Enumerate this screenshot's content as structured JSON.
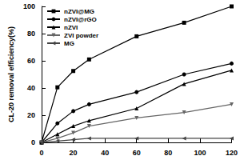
{
  "chart_data": {
    "type": "line",
    "y_label": "CL-20 removal efficiency(%)",
    "x": [
      0,
      10,
      20,
      30,
      60,
      90,
      120
    ],
    "series": [
      {
        "name": "nZVI@MG",
        "color": "#000000",
        "marker": "square",
        "values": [
          0,
          40.5,
          52.5,
          61,
          78,
          88,
          100
        ]
      },
      {
        "name": "nZVI@rGO",
        "color": "#000000",
        "marker": "circle",
        "values": [
          0,
          14,
          23,
          28,
          37,
          50,
          58
        ]
      },
      {
        "name": "nZVI",
        "color": "#000000",
        "marker": "triangle",
        "values": [
          0,
          6,
          12,
          16,
          25,
          43,
          53
        ]
      },
      {
        "name": "ZVI powder",
        "color": "#666666",
        "marker": "triangle_down",
        "values": [
          0,
          3,
          7,
          12,
          18,
          22,
          28
        ]
      },
      {
        "name": "MG",
        "color": "#444444",
        "marker": "triangle_left",
        "values": [
          0,
          1,
          2,
          3,
          3,
          3,
          3
        ]
      }
    ],
    "xlim": [
      0,
      120
    ],
    "xticks": [
      0,
      20,
      40,
      60,
      80,
      100,
      120
    ],
    "ylim": [
      0,
      100
    ],
    "yticks": [
      0,
      20,
      40,
      60,
      80,
      100
    ],
    "legend": "upper left",
    "grid": false
  }
}
